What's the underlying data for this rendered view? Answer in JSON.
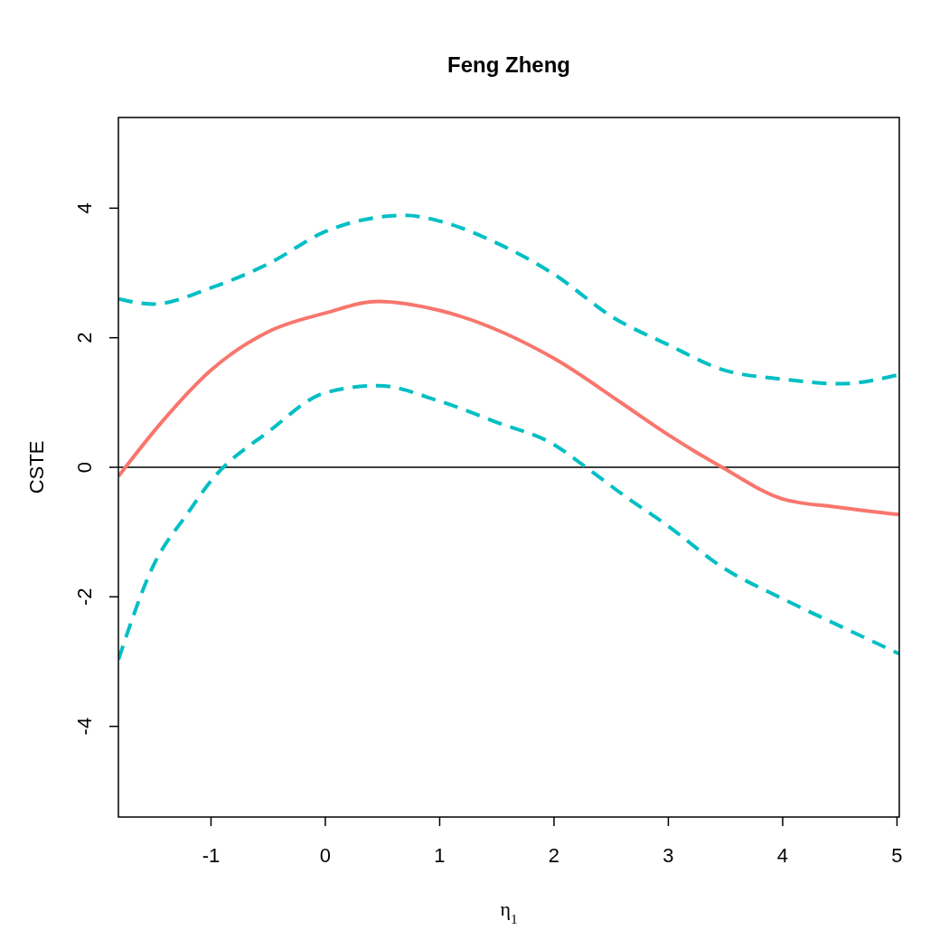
{
  "chart_data": {
    "type": "line",
    "title": "Feng Zheng",
    "xlabel": "η$_{1}$",
    "ylabel": "CSTE",
    "xlim": [
      -1.81,
      5.02
    ],
    "ylim": [
      -5.4,
      5.4
    ],
    "xticks": [
      -1,
      0,
      1,
      2,
      3,
      4,
      5
    ],
    "yticks": [
      -4,
      -2,
      0,
      2,
      4
    ],
    "grid": false,
    "series": [
      {
        "color": "#f8766d",
        "line_style": "solid",
        "x": [
          -1.81,
          -1.43,
          -1,
          -0.49,
          0,
          0.46,
          1,
          2,
          2.6,
          3,
          3.47,
          4,
          4.5,
          5.02
        ],
        "values": [
          -0.14,
          0.7,
          1.5,
          2.1,
          2.38,
          2.56,
          2.42,
          1.68,
          0.98,
          0.5,
          0,
          -0.49,
          -0.62,
          -0.73
        ]
      },
      {
        "color": "#00bfc4",
        "line_style": "dashed",
        "x": [
          -1.81,
          -1.51,
          -1,
          -0.49,
          0,
          0.46,
          0.7,
          1,
          1.49,
          2,
          2.52,
          3,
          3.47,
          4,
          4.5,
          5.02
        ],
        "values": [
          2.6,
          2.52,
          2.77,
          3.15,
          3.64,
          3.86,
          3.89,
          3.8,
          3.47,
          2.98,
          2.31,
          1.89,
          1.51,
          1.36,
          1.29,
          1.43
        ]
      },
      {
        "color": "#00bfc4",
        "line_style": "dashed",
        "x": [
          -1.81,
          -1.51,
          -1.2,
          -1,
          -0.49,
          0,
          0.46,
          1,
          1.49,
          2,
          2.28,
          2.6,
          3,
          3.47,
          4,
          4.5,
          5.02
        ],
        "values": [
          -2.97,
          -1.54,
          -0.7,
          -0.21,
          0.56,
          1.15,
          1.26,
          1.02,
          0.7,
          0.35,
          0,
          -0.42,
          -0.91,
          -1.54,
          -2.03,
          -2.45,
          -2.88
        ]
      }
    ],
    "ref_lines": [
      {
        "axis": "y",
        "value": 0,
        "color": "#000000"
      }
    ]
  }
}
